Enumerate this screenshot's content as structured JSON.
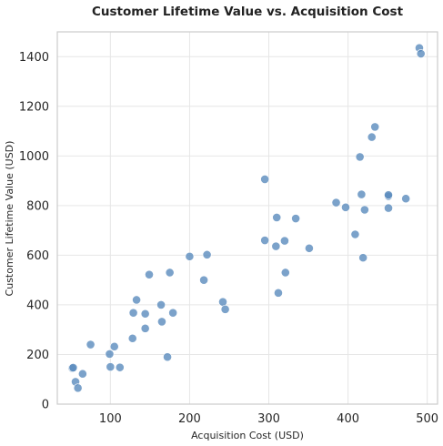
{
  "chart_data": {
    "type": "scatter",
    "title": "Customer Lifetime Value vs. Acquisition Cost",
    "xlabel": "Acquisition Cost (USD)",
    "ylabel": "Customer Lifetime Value (USD)",
    "xlim": [
      33,
      513
    ],
    "ylim": [
      0,
      1500
    ],
    "xticks": [
      100,
      200,
      300,
      400,
      500
    ],
    "yticks": [
      0,
      200,
      400,
      600,
      800,
      1000,
      1200,
      1400
    ],
    "grid": true,
    "legend": "none",
    "point_color": "#5a8bbd",
    "points": [
      {
        "x": 52,
        "y": 145
      },
      {
        "x": 53,
        "y": 147
      },
      {
        "x": 56,
        "y": 90
      },
      {
        "x": 59,
        "y": 65
      },
      {
        "x": 65,
        "y": 122
      },
      {
        "x": 75,
        "y": 240
      },
      {
        "x": 99,
        "y": 202
      },
      {
        "x": 100,
        "y": 150
      },
      {
        "x": 105,
        "y": 232
      },
      {
        "x": 112,
        "y": 148
      },
      {
        "x": 128,
        "y": 265
      },
      {
        "x": 129,
        "y": 368
      },
      {
        "x": 133,
        "y": 420
      },
      {
        "x": 144,
        "y": 305
      },
      {
        "x": 144,
        "y": 364
      },
      {
        "x": 149,
        "y": 522
      },
      {
        "x": 164,
        "y": 400
      },
      {
        "x": 165,
        "y": 332
      },
      {
        "x": 172,
        "y": 190
      },
      {
        "x": 175,
        "y": 530
      },
      {
        "x": 179,
        "y": 368
      },
      {
        "x": 200,
        "y": 595
      },
      {
        "x": 218,
        "y": 500
      },
      {
        "x": 222,
        "y": 602
      },
      {
        "x": 242,
        "y": 412
      },
      {
        "x": 245,
        "y": 382
      },
      {
        "x": 295,
        "y": 906
      },
      {
        "x": 295,
        "y": 660
      },
      {
        "x": 309,
        "y": 636
      },
      {
        "x": 310,
        "y": 752
      },
      {
        "x": 312,
        "y": 448
      },
      {
        "x": 320,
        "y": 658
      },
      {
        "x": 321,
        "y": 530
      },
      {
        "x": 334,
        "y": 748
      },
      {
        "x": 351,
        "y": 628
      },
      {
        "x": 385,
        "y": 812
      },
      {
        "x": 397,
        "y": 793
      },
      {
        "x": 409,
        "y": 684
      },
      {
        "x": 415,
        "y": 996
      },
      {
        "x": 417,
        "y": 845
      },
      {
        "x": 419,
        "y": 590
      },
      {
        "x": 421,
        "y": 783
      },
      {
        "x": 430,
        "y": 1076
      },
      {
        "x": 434,
        "y": 1117
      },
      {
        "x": 451,
        "y": 838
      },
      {
        "x": 451,
        "y": 843
      },
      {
        "x": 451,
        "y": 790
      },
      {
        "x": 473,
        "y": 828
      },
      {
        "x": 490,
        "y": 1435
      },
      {
        "x": 492,
        "y": 1412
      }
    ]
  }
}
